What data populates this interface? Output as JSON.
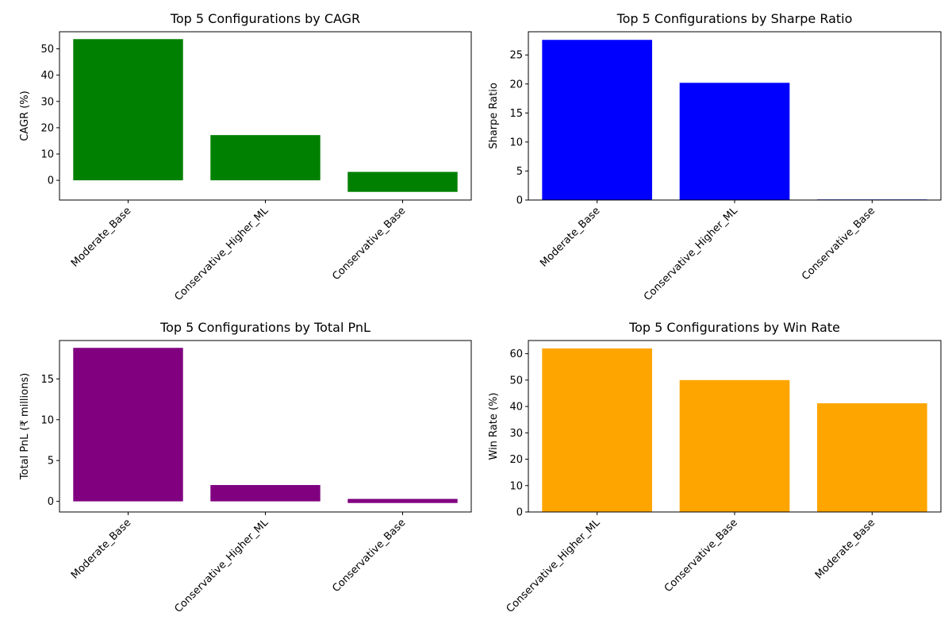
{
  "colors": {
    "cagr": "#008000",
    "sharpe": "#0000ff",
    "pnl": "#800080",
    "winrate": "#ffa500"
  },
  "chart_data": [
    {
      "type": "bar",
      "title": "Top 5 Configurations by CAGR",
      "xlabel": "",
      "ylabel": "CAGR (%)",
      "categories": [
        "Moderate_Base",
        "Conservative_Higher_ML",
        "Conservative_Base"
      ],
      "values": [
        53.7,
        17.2,
        3.2
      ],
      "lows": [
        0,
        0,
        -4.4
      ],
      "ylim": [
        -7.5,
        56.5
      ],
      "yticks": [
        0,
        10,
        20,
        30,
        40,
        50
      ],
      "color": "#008000"
    },
    {
      "type": "bar",
      "title": "Top 5 Configurations by Sharpe Ratio",
      "xlabel": "",
      "ylabel": "Sharpe Ratio",
      "categories": [
        "Moderate_Base",
        "Conservative_Higher_ML",
        "Conservative_Base"
      ],
      "values": [
        27.6,
        20.2,
        0.1
      ],
      "lows": [
        0,
        0,
        0
      ],
      "ylim": [
        0,
        29
      ],
      "yticks": [
        0,
        5,
        10,
        15,
        20,
        25
      ],
      "color": "#0000ff"
    },
    {
      "type": "bar",
      "title": "Top 5 Configurations by Total PnL",
      "xlabel": "",
      "ylabel": "Total PnL (₹ millions)",
      "categories": [
        "Moderate_Base",
        "Conservative_Higher_ML",
        "Conservative_Base"
      ],
      "values": [
        18.8,
        2.0,
        0.3
      ],
      "lows": [
        0,
        0,
        -0.2
      ],
      "ylim": [
        -1.3,
        19.7
      ],
      "yticks": [
        0,
        5,
        10,
        15
      ],
      "color": "#800080"
    },
    {
      "type": "bar",
      "title": "Top 5 Configurations by Win Rate",
      "xlabel": "",
      "ylabel": "Win Rate (%)",
      "categories": [
        "Conservative_Higher_ML",
        "Conservative_Base",
        "Moderate_Base"
      ],
      "values": [
        62,
        50,
        41.2
      ],
      "lows": [
        0,
        0,
        0
      ],
      "ylim": [
        0,
        65
      ],
      "yticks": [
        0,
        10,
        20,
        30,
        40,
        50,
        60
      ],
      "color": "#ffa500"
    }
  ]
}
